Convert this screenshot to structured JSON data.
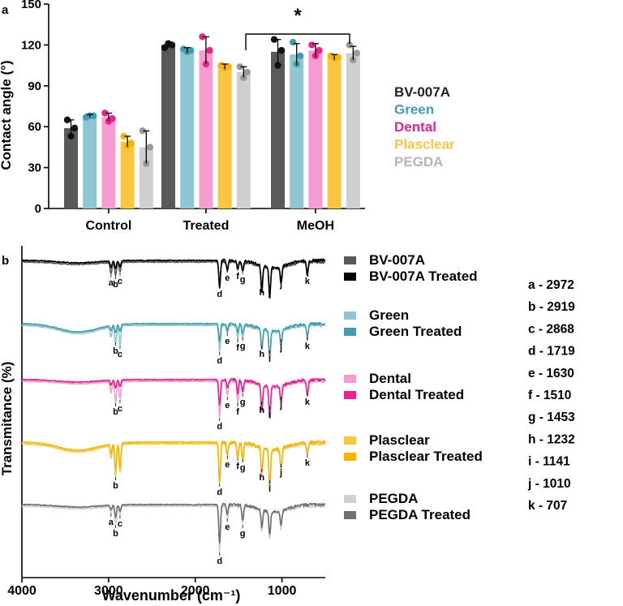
{
  "colors": {
    "BV-007A": "#595959",
    "Green": "#8fc6d2",
    "Dental": "#f79cd0",
    "Plasclear": "#fbc63e",
    "PEGDA": "#cfcfcf",
    "BV-007A Treated": "#000000",
    "Green Treated": "#3f9db0",
    "Dental Treated": "#ee1f8e",
    "Plasclear Treated": "#f8b500",
    "PEGDA Treated": "#707070",
    "dot_BV-007A": "#111111",
    "dot_Green": "#3f9db0",
    "dot_Dental": "#ee1f8e",
    "dot_Plasclear": "#f8b500",
    "dot_PEGDA": "#9a9a9a",
    "legend_BV-007A": "#222222",
    "legend_Green": "#3f9db0",
    "legend_Dental": "#ee1f8e",
    "legend_Plasclear": "#fbc63e",
    "legend_PEGDA": "#b5b5b5"
  },
  "chart_data": [
    {
      "type": "bar",
      "panel_label": "a",
      "ylabel": "Contact angle (°)",
      "xlabel": "",
      "ylim": [
        0,
        150
      ],
      "yticks": [
        "0",
        "30",
        "60",
        "90",
        "120",
        "150"
      ],
      "categories": [
        "Control",
        "Treated",
        "MeOH"
      ],
      "series": [
        {
          "name": "BV-007A",
          "values": [
            59,
            120,
            115
          ],
          "errors": [
            6,
            2,
            9
          ],
          "points": [
            [
              65,
              53,
              59
            ],
            [
              118,
              121,
              120
            ],
            [
              124,
              105,
              116
            ]
          ]
        },
        {
          "name": "Green",
          "values": [
            68,
            116,
            113
          ],
          "errors": [
            1,
            2,
            8
          ],
          "points": [
            [
              67,
              68,
              68
            ],
            [
              117,
              115,
              116
            ],
            [
              122,
              106,
              112
            ]
          ]
        },
        {
          "name": "Dental",
          "values": [
            67,
            116,
            116
          ],
          "errors": [
            3,
            10,
            5
          ],
          "points": [
            [
              70,
              64,
              66
            ],
            [
              126,
              106,
              116
            ],
            [
              120,
              112,
              116
            ]
          ]
        },
        {
          "name": "Plasclear",
          "values": [
            49,
            104,
            111
          ],
          "errors": [
            4,
            2,
            2
          ],
          "points": [
            [
              53,
              46,
              48
            ],
            [
              105,
              103,
              104
            ],
            [
              112,
              110,
              111
            ]
          ]
        },
        {
          "name": "PEGDA",
          "values": [
            45,
            100,
            114
          ],
          "errors": [
            12,
            4,
            5
          ],
          "points": [
            [
              57,
              33,
              45
            ],
            [
              104,
              96,
              100
            ],
            [
              120,
              109,
              114
            ]
          ]
        }
      ],
      "significance": {
        "label": "*"
      },
      "legend": [
        "BV-007A",
        "Green",
        "Dental",
        "Plasclear",
        "PEGDA"
      ],
      "grid": false
    },
    {
      "type": "line",
      "panel_label": "b",
      "xlabel": "Wavenumber (cm⁻¹)",
      "ylabel": "Transmitance (%)",
      "xlim": [
        4000,
        500
      ],
      "xticks": [
        "4000",
        "3000",
        "2000",
        "1000"
      ],
      "grid": false,
      "legend": [
        [
          "BV-007A",
          "BV-007A Treated"
        ],
        [
          "Green",
          "Green Treated"
        ],
        [
          "Dental",
          "Dental Treated"
        ],
        [
          "Plasclear",
          "Plasclear Treated"
        ],
        [
          "PEGDA",
          "PEGDA Treated"
        ]
      ],
      "peak_key": [
        "a - 2972",
        "b - 2919",
        "c - 2868",
        "d - 1719",
        "e - 1630",
        "f - 1510",
        "g - 1453",
        "h - 1232",
        "i - 1141",
        "j - 1010",
        "k - 707"
      ],
      "peaks": {
        "a": 2972,
        "b": 2919,
        "c": 2868,
        "d": 1719,
        "e": 1630,
        "f": 1510,
        "g": 1453,
        "h": 1232,
        "i": 1141,
        "j": 1010,
        "k": 707
      },
      "spectra": [
        {
          "name": "BV-007A",
          "peaks": [
            [
              "a",
              2972,
              14
            ],
            [
              "b",
              2919,
              16
            ],
            [
              "c",
              2868,
              12
            ],
            [
              "d",
              1719,
              28
            ],
            [
              "e",
              1630,
              8
            ],
            [
              "f",
              1510,
              6
            ],
            [
              "g",
              1453,
              10
            ],
            [
              "h",
              1232,
              26
            ],
            [
              "i",
              1141,
              30
            ],
            [
              "j",
              1010,
              16
            ],
            [
              "k",
              707,
              12
            ]
          ],
          "labels": [
            "a",
            "b",
            "c",
            "d",
            "e",
            "f",
            "g",
            "h",
            "i",
            "j",
            "k"
          ]
        },
        {
          "name": "BV-007A Treated",
          "peaks": [
            [
              "a",
              2972,
              8
            ],
            [
              "b",
              2919,
              10
            ],
            [
              "c",
              2868,
              8
            ],
            [
              "d",
              1719,
              34
            ],
            [
              "e",
              1630,
              14
            ],
            [
              "f",
              1510,
              10
            ],
            [
              "g",
              1453,
              14
            ],
            [
              "h",
              1232,
              34
            ],
            [
              "i",
              1141,
              38
            ],
            [
              "j",
              1010,
              22
            ],
            [
              "k",
              707,
              20
            ]
          ]
        },
        {
          "name": "Green",
          "peaks": [
            [
              "a",
              2972,
              12
            ],
            [
              "b",
              2919,
              20
            ],
            [
              "c",
              2868,
              24
            ],
            [
              "d",
              1719,
              32
            ],
            [
              "e",
              1630,
              8
            ],
            [
              "f",
              1510,
              16
            ],
            [
              "g",
              1453,
              14
            ],
            [
              "h",
              1232,
              24
            ],
            [
              "i",
              1141,
              30
            ],
            [
              "j",
              1010,
              16
            ],
            [
              "k",
              707,
              14
            ]
          ],
          "labels": [
            "b",
            "c",
            "d",
            "e",
            "f",
            "g",
            "h",
            "i",
            "j",
            "k"
          ]
        },
        {
          "name": "Green Treated",
          "peaks": [
            [
              "a",
              2972,
              6
            ],
            [
              "b",
              2919,
              10
            ],
            [
              "c",
              2868,
              8
            ],
            [
              "d",
              1719,
              22
            ],
            [
              "e",
              1630,
              10
            ],
            [
              "f",
              1510,
              10
            ],
            [
              "g",
              1453,
              12
            ],
            [
              "h",
              1232,
              26
            ],
            [
              "i",
              1141,
              34
            ],
            [
              "j",
              1010,
              20
            ],
            [
              "k",
              707,
              18
            ]
          ]
        },
        {
          "name": "Dental",
          "peaks": [
            [
              "a",
              2972,
              14
            ],
            [
              "b",
              2919,
              26
            ],
            [
              "c",
              2868,
              22
            ],
            [
              "d",
              1719,
              44
            ],
            [
              "e",
              1630,
              18
            ],
            [
              "f",
              1510,
              26
            ],
            [
              "g",
              1453,
              14
            ],
            [
              "h",
              1232,
              24
            ],
            [
              "i",
              1141,
              30
            ],
            [
              "j",
              1010,
              18
            ],
            [
              "k",
              707,
              14
            ]
          ],
          "labels": [
            "b",
            "c",
            "d",
            "e",
            "f",
            "g",
            "h",
            "i",
            "j",
            "k"
          ]
        },
        {
          "name": "Dental Treated",
          "peaks": [
            [
              "a",
              2972,
              6
            ],
            [
              "b",
              2919,
              10
            ],
            [
              "c",
              2868,
              8
            ],
            [
              "d",
              1719,
              32
            ],
            [
              "e",
              1630,
              10
            ],
            [
              "f",
              1510,
              16
            ],
            [
              "g",
              1453,
              14
            ],
            [
              "h",
              1232,
              34
            ],
            [
              "i",
              1141,
              40
            ],
            [
              "j",
              1010,
              22
            ],
            [
              "k",
              707,
              20
            ]
          ]
        },
        {
          "name": "Plasclear",
          "peaks": [
            [
              "a",
              2972,
              16
            ],
            [
              "b",
              2919,
              40
            ],
            [
              "c",
              2868,
              34
            ],
            [
              "d",
              1719,
              48
            ],
            [
              "e",
              1630,
              14
            ],
            [
              "f",
              1510,
              16
            ],
            [
              "g",
              1453,
              18
            ],
            [
              "h",
              1232,
              30
            ],
            [
              "i",
              1141,
              44
            ],
            [
              "j",
              1010,
              24
            ],
            [
              "k",
              707,
              12
            ]
          ],
          "labels": [
            "b",
            "d",
            "e",
            "f",
            "g",
            "h",
            "i",
            "j",
            "k"
          ]
        },
        {
          "name": "Plasclear Treated",
          "peaks": [
            [
              "a",
              2972,
              12
            ],
            [
              "b",
              2919,
              34
            ],
            [
              "c",
              2868,
              30
            ],
            [
              "d",
              1719,
              50
            ],
            [
              "e",
              1630,
              16
            ],
            [
              "f",
              1510,
              20
            ],
            [
              "g",
              1453,
              22
            ],
            [
              "h",
              1232,
              36
            ],
            [
              "i",
              1141,
              48
            ],
            [
              "j",
              1010,
              28
            ],
            [
              "k",
              707,
              16
            ]
          ]
        },
        {
          "name": "PEGDA",
          "peaks": [
            [
              "a",
              2972,
              8
            ],
            [
              "b",
              2919,
              22
            ],
            [
              "c",
              2868,
              10
            ],
            [
              "d",
              1719,
              56
            ],
            [
              "e",
              1630,
              14
            ],
            [
              "g",
              1453,
              22
            ],
            [
              "h",
              1232,
              26
            ],
            [
              "i",
              1141,
              34
            ],
            [
              "j",
              1010,
              22
            ]
          ],
          "labels": [
            "a",
            "b",
            "c",
            "d",
            "e",
            "g"
          ]
        },
        {
          "name": "PEGDA Treated",
          "peaks": [
            [
              "a",
              2972,
              6
            ],
            [
              "b",
              2919,
              16
            ],
            [
              "c",
              2868,
              8
            ],
            [
              "d",
              1719,
              48
            ],
            [
              "e",
              1630,
              12
            ],
            [
              "g",
              1453,
              18
            ],
            [
              "h",
              1232,
              22
            ],
            [
              "i",
              1141,
              28
            ],
            [
              "j",
              1010,
              18
            ]
          ]
        }
      ]
    }
  ]
}
